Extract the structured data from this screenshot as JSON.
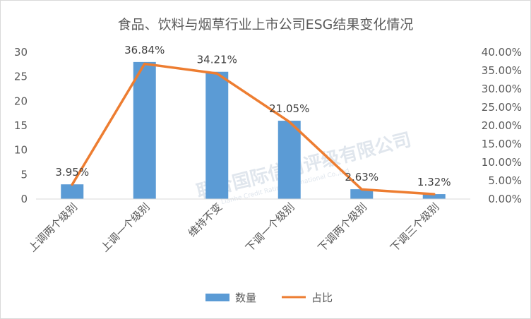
{
  "chart_data": {
    "type": "bar+line",
    "title": "食品、饮料与烟草行业上市公司ESG结果变化情况",
    "categories": [
      "上调两个级别",
      "上调一个级别",
      "维持不变",
      "下调一个级别",
      "下调两个级别",
      "下调三个级别"
    ],
    "series": [
      {
        "name": "数量",
        "type": "bar",
        "axis": "left",
        "values": [
          3,
          28,
          26,
          16,
          2,
          1
        ],
        "color": "#5b9bd5"
      },
      {
        "name": "占比",
        "type": "line",
        "axis": "right",
        "values": [
          3.95,
          36.84,
          34.21,
          21.05,
          2.63,
          1.32
        ],
        "color": "#ed7d31"
      }
    ],
    "data_labels": [
      "3.95%",
      "36.84%",
      "34.21%",
      "21.05%",
      "2.63%",
      "1.32%"
    ],
    "y_left": {
      "min": 0,
      "max": 30,
      "step": 5,
      "ticks": [
        "0",
        "5",
        "10",
        "15",
        "20",
        "25",
        "30"
      ]
    },
    "y_right": {
      "min": 0,
      "max": 40,
      "step": 5,
      "ticks": [
        "0.00%",
        "5.00%",
        "10.00%",
        "15.00%",
        "20.00%",
        "25.00%",
        "30.00%",
        "35.00%",
        "40.00%"
      ]
    },
    "grid": false,
    "legend_position": "bottom"
  },
  "watermark": {
    "company_cn": "联合国际信用评级有限公司",
    "company_en": "Lianhe Credit Rating International Co.,Ltd"
  }
}
